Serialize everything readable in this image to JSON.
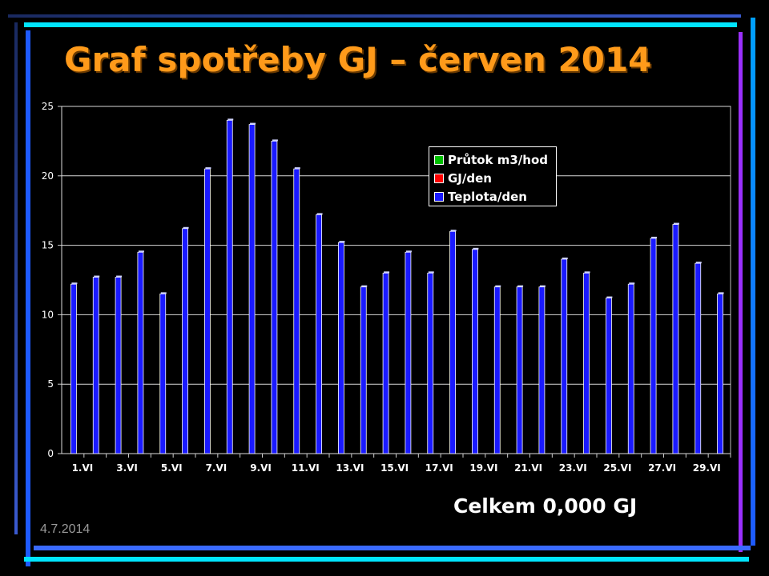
{
  "slide": {
    "title": "Graf spotřeby GJ – červen 2014",
    "total": "Celkem 0,000 GJ",
    "date": "4.7.2014"
  },
  "colors": {
    "title": "#ff9a1a",
    "series_flow": "#00c000",
    "series_gj": "#ff0000",
    "series_temp": "#1a1aff",
    "frame_cyan": "#00e5ff",
    "frame_blue": "#1e5aff",
    "frame_purple": "#9b30ff"
  },
  "chart_data": {
    "type": "bar",
    "title": "",
    "xlabel": "",
    "ylabel": "",
    "ylim": [
      0,
      25
    ],
    "yticks": [
      0,
      5,
      10,
      15,
      20,
      25
    ],
    "grid": true,
    "legend_position": "top-right",
    "categories": [
      "1.VI",
      "2.VI",
      "3.VI",
      "4.VI",
      "5.VI",
      "6.VI",
      "7.VI",
      "8.VI",
      "9.VI",
      "10.VI",
      "11.VI",
      "12.VI",
      "13.VI",
      "14.VI",
      "15.VI",
      "16.VI",
      "17.VI",
      "18.VI",
      "19.VI",
      "20.VI",
      "21.VI",
      "22.VI",
      "23.VI",
      "24.VI",
      "25.VI",
      "26.VI",
      "27.VI",
      "28.VI",
      "29.VI",
      "30.VI"
    ],
    "xtick_labels": [
      "1.VI",
      "3.VI",
      "5.VI",
      "7.VI",
      "9.VI",
      "11.VI",
      "13.VI",
      "15.VI",
      "17.VI",
      "19.VI",
      "21.VI",
      "23.VI",
      "25.VI",
      "27.VI",
      "29.VI"
    ],
    "series": [
      {
        "name": "Průtok m3/hod",
        "color": "#00c000",
        "values": [
          0,
          0,
          0,
          0,
          0,
          0,
          0,
          0,
          0,
          0,
          0,
          0,
          0,
          0,
          0,
          0,
          0,
          0,
          0,
          0,
          0,
          0,
          0,
          0,
          0,
          0,
          0,
          0,
          0,
          0
        ]
      },
      {
        "name": "GJ/den",
        "color": "#ff0000",
        "values": [
          0,
          0,
          0,
          0,
          0,
          0,
          0,
          0,
          0,
          0,
          0,
          0,
          0,
          0,
          0,
          0,
          0,
          0,
          0,
          0,
          0,
          0,
          0,
          0,
          0,
          0,
          0,
          0,
          0,
          0
        ]
      },
      {
        "name": "Teplota/den",
        "color": "#1a1aff",
        "values": [
          12.2,
          12.7,
          12.7,
          14.5,
          11.5,
          16.2,
          20.5,
          24.0,
          23.7,
          22.5,
          20.5,
          17.2,
          15.2,
          12.0,
          13.0,
          14.5,
          13.0,
          16.0,
          14.7,
          12.0,
          12.0,
          12.0,
          14.0,
          13.0,
          11.2,
          12.2,
          15.5,
          16.5,
          13.7,
          11.5
        ]
      }
    ]
  }
}
